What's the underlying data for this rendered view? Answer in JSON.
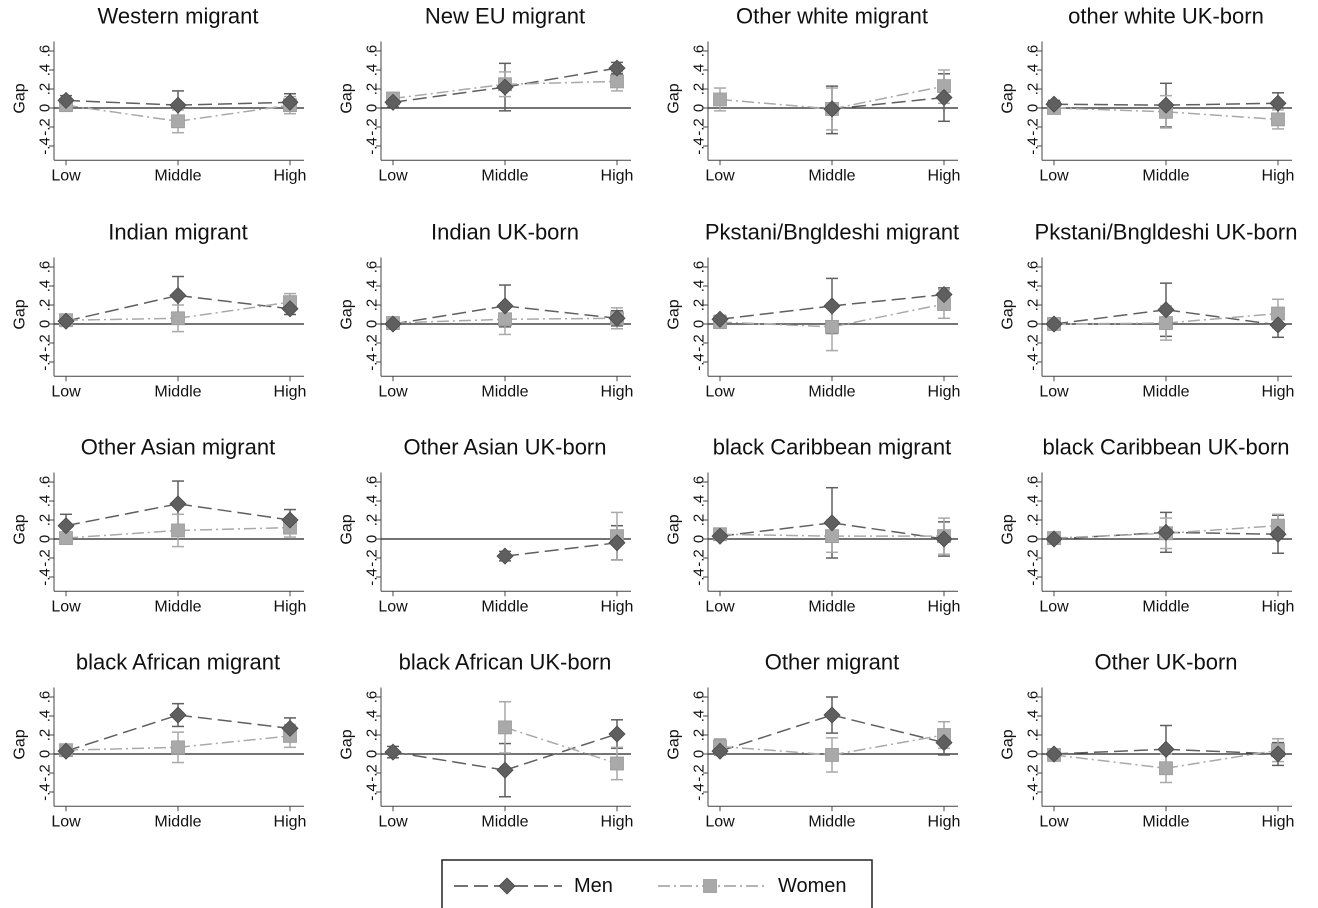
{
  "chart_data": {
    "type": "line",
    "layout": "4x4 small multiples with shared legend at bottom",
    "ylabel": "Gap",
    "y_ticks": [
      "-.4",
      "-.2",
      "0",
      ".2",
      ".4",
      ".6"
    ],
    "ylim": [
      -0.55,
      0.7
    ],
    "categories": [
      "Low",
      "Middle",
      "High"
    ],
    "zero_line": true,
    "grid": false,
    "legend": {
      "position": "bottom-center",
      "men": "Men",
      "women": "Women"
    },
    "colors": {
      "men": "#5f5f5f",
      "women": "#a9a9a9",
      "axis": "#444444",
      "zero_line": "#222222"
    },
    "panels": [
      {
        "title": "Western migrant",
        "series": [
          {
            "name": "Men",
            "values": [
              0.08,
              0.03,
              0.06
            ],
            "lower": [
              0.03,
              -0.12,
              -0.03
            ],
            "upper": [
              0.13,
              0.18,
              0.15
            ]
          },
          {
            "name": "Women",
            "values": [
              0.03,
              -0.14,
              0.03
            ],
            "lower": [
              -0.02,
              -0.26,
              -0.06
            ],
            "upper": [
              0.08,
              -0.02,
              0.12
            ]
          }
        ]
      },
      {
        "title": "New EU migrant",
        "series": [
          {
            "name": "Men",
            "values": [
              0.06,
              0.22,
              0.42
            ],
            "lower": [
              0.01,
              -0.03,
              0.36
            ],
            "upper": [
              0.11,
              0.47,
              0.48
            ]
          },
          {
            "name": "Women",
            "values": [
              0.1,
              0.25,
              0.28
            ],
            "lower": [
              0.05,
              0.12,
              0.18
            ],
            "upper": [
              0.15,
              0.38,
              0.38
            ]
          }
        ]
      },
      {
        "title": "Other white migrant",
        "series": [
          {
            "name": "Men",
            "values": [
              null,
              -0.01,
              0.11
            ],
            "lower": [
              null,
              -0.27,
              -0.14
            ],
            "upper": [
              null,
              0.23,
              0.36
            ]
          },
          {
            "name": "Women",
            "values": [
              0.09,
              -0.01,
              0.23
            ],
            "lower": [
              -0.03,
              -0.23,
              0.05
            ],
            "upper": [
              0.21,
              0.21,
              0.4
            ]
          }
        ]
      },
      {
        "title": "other white UK-born",
        "series": [
          {
            "name": "Men",
            "values": [
              0.04,
              0.03,
              0.05
            ],
            "lower": [
              0.0,
              -0.2,
              -0.06
            ],
            "upper": [
              0.08,
              0.26,
              0.16
            ]
          },
          {
            "name": "Women",
            "values": [
              0.0,
              -0.04,
              -0.12
            ],
            "lower": [
              -0.04,
              -0.21,
              -0.22
            ],
            "upper": [
              0.04,
              0.13,
              -0.02
            ]
          }
        ]
      },
      {
        "title": "Indian migrant",
        "series": [
          {
            "name": "Men",
            "values": [
              0.03,
              0.3,
              0.16
            ],
            "lower": [
              -0.01,
              0.1,
              0.1
            ],
            "upper": [
              0.07,
              0.5,
              0.22
            ]
          },
          {
            "name": "Women",
            "values": [
              0.04,
              0.06,
              0.23
            ],
            "lower": [
              0.0,
              -0.08,
              0.14
            ],
            "upper": [
              0.08,
              0.2,
              0.32
            ]
          }
        ]
      },
      {
        "title": "Indian UK-born",
        "series": [
          {
            "name": "Men",
            "values": [
              0.0,
              0.19,
              0.06
            ],
            "lower": [
              -0.04,
              -0.03,
              -0.02
            ],
            "upper": [
              0.04,
              0.41,
              0.14
            ]
          },
          {
            "name": "Women",
            "values": [
              0.01,
              0.05,
              0.06
            ],
            "lower": [
              -0.03,
              -0.11,
              -0.05
            ],
            "upper": [
              0.05,
              0.21,
              0.17
            ]
          }
        ]
      },
      {
        "title": "Pkstani/Bngldeshi migrant",
        "series": [
          {
            "name": "Men",
            "values": [
              0.05,
              0.19,
              0.31
            ],
            "lower": [
              0.01,
              -0.1,
              0.24
            ],
            "upper": [
              0.09,
              0.48,
              0.38
            ]
          },
          {
            "name": "Women",
            "values": [
              0.02,
              -0.03,
              0.21
            ],
            "lower": [
              -0.02,
              -0.28,
              0.06
            ],
            "upper": [
              0.06,
              0.22,
              0.36
            ]
          }
        ]
      },
      {
        "title": "Pkstani/Bngldeshi UK-born",
        "series": [
          {
            "name": "Men",
            "values": [
              0.0,
              0.15,
              -0.01
            ],
            "lower": [
              -0.04,
              -0.13,
              -0.14
            ],
            "upper": [
              0.04,
              0.43,
              0.12
            ]
          },
          {
            "name": "Women",
            "values": [
              0.0,
              0.01,
              0.11
            ],
            "lower": [
              -0.04,
              -0.17,
              -0.04
            ],
            "upper": [
              0.04,
              0.19,
              0.26
            ]
          }
        ]
      },
      {
        "title": "Other Asian migrant",
        "series": [
          {
            "name": "Men",
            "values": [
              0.14,
              0.37,
              0.2
            ],
            "lower": [
              0.02,
              0.13,
              0.09
            ],
            "upper": [
              0.26,
              0.61,
              0.31
            ]
          },
          {
            "name": "Women",
            "values": [
              0.01,
              0.09,
              0.12
            ],
            "lower": [
              -0.03,
              -0.08,
              0.02
            ],
            "upper": [
              0.05,
              0.26,
              0.22
            ]
          }
        ]
      },
      {
        "title": "Other Asian UK-born",
        "series": [
          {
            "name": "Men",
            "values": [
              null,
              -0.18,
              -0.04
            ],
            "lower": [
              null,
              -0.23,
              -0.22
            ],
            "upper": [
              null,
              -0.13,
              0.14
            ]
          },
          {
            "name": "Women",
            "values": [
              null,
              null,
              0.03
            ],
            "lower": [
              null,
              null,
              -0.22
            ],
            "upper": [
              null,
              null,
              0.28
            ]
          }
        ]
      },
      {
        "title": "black Caribbean migrant",
        "series": [
          {
            "name": "Men",
            "values": [
              0.03,
              0.17,
              0.0
            ],
            "lower": [
              -0.01,
              -0.2,
              -0.18
            ],
            "upper": [
              0.07,
              0.54,
              0.18
            ]
          },
          {
            "name": "Women",
            "values": [
              0.05,
              0.03,
              0.03
            ],
            "lower": [
              -0.01,
              -0.14,
              -0.16
            ],
            "upper": [
              0.11,
              0.2,
              0.22
            ]
          }
        ]
      },
      {
        "title": "black Caribbean UK-born",
        "series": [
          {
            "name": "Men",
            "values": [
              0.0,
              0.07,
              0.05
            ],
            "lower": [
              -0.04,
              -0.14,
              -0.15
            ],
            "upper": [
              0.04,
              0.28,
              0.25
            ]
          },
          {
            "name": "Women",
            "values": [
              0.01,
              0.06,
              0.14
            ],
            "lower": [
              -0.03,
              -0.1,
              0.02
            ],
            "upper": [
              0.05,
              0.22,
              0.26
            ]
          }
        ]
      },
      {
        "title": "black African migrant",
        "series": [
          {
            "name": "Men",
            "values": [
              0.03,
              0.41,
              0.27
            ],
            "lower": [
              -0.01,
              0.29,
              0.16
            ],
            "upper": [
              0.07,
              0.53,
              0.38
            ]
          },
          {
            "name": "Women",
            "values": [
              0.04,
              0.07,
              0.19
            ],
            "lower": [
              0.0,
              -0.09,
              0.07
            ],
            "upper": [
              0.08,
              0.23,
              0.31
            ]
          }
        ]
      },
      {
        "title": "black African UK-born",
        "series": [
          {
            "name": "Men",
            "values": [
              0.02,
              -0.17,
              0.21
            ],
            "lower": [
              -0.04,
              -0.45,
              0.06
            ],
            "upper": [
              0.08,
              0.11,
              0.36
            ]
          },
          {
            "name": "Women",
            "values": [
              null,
              0.28,
              -0.1
            ],
            "lower": [
              null,
              0.01,
              -0.27
            ],
            "upper": [
              null,
              0.55,
              0.07
            ]
          }
        ]
      },
      {
        "title": "Other migrant",
        "series": [
          {
            "name": "Men",
            "values": [
              0.03,
              0.41,
              0.12
            ],
            "lower": [
              -0.01,
              0.22,
              -0.01
            ],
            "upper": [
              0.07,
              0.6,
              0.25
            ]
          },
          {
            "name": "Women",
            "values": [
              0.08,
              -0.01,
              0.2
            ],
            "lower": [
              0.0,
              -0.19,
              0.06
            ],
            "upper": [
              0.16,
              0.17,
              0.34
            ]
          }
        ]
      },
      {
        "title": "Other UK-born",
        "series": [
          {
            "name": "Men",
            "values": [
              0.0,
              0.05,
              0.0
            ],
            "lower": [
              -0.04,
              -0.2,
              -0.12
            ],
            "upper": [
              0.04,
              0.3,
              0.12
            ]
          },
          {
            "name": "Women",
            "values": [
              -0.01,
              -0.15,
              0.04
            ],
            "lower": [
              -0.05,
              -0.3,
              -0.08
            ],
            "upper": [
              0.03,
              0.0,
              0.16
            ]
          }
        ]
      }
    ]
  }
}
